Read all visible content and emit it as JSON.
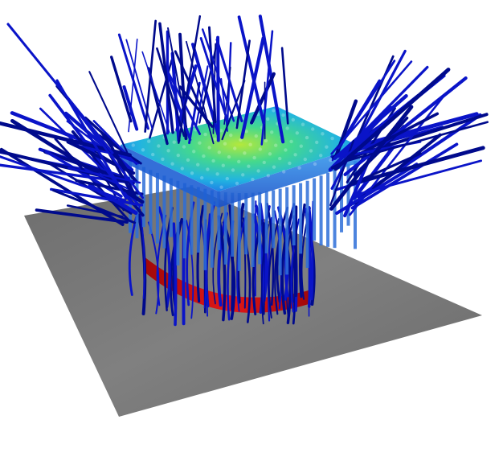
{
  "scene": {
    "subject": "heat-sink-airflow-streamlines",
    "colors": {
      "background": "#ffffff",
      "ground_plate": "#7a7a7a",
      "ground_plate_dark": "#5e5e5e",
      "streamline": "#0a14c8",
      "streamline_dark": "#000a8c",
      "heatsink_base": "#1e64e6",
      "heat_hot": "#9ae040",
      "heat_warm": "#30d0a0",
      "heat_cool": "#2a8cf0",
      "fin": "#2e6fd8",
      "heated_ring": "#d01414"
    }
  }
}
